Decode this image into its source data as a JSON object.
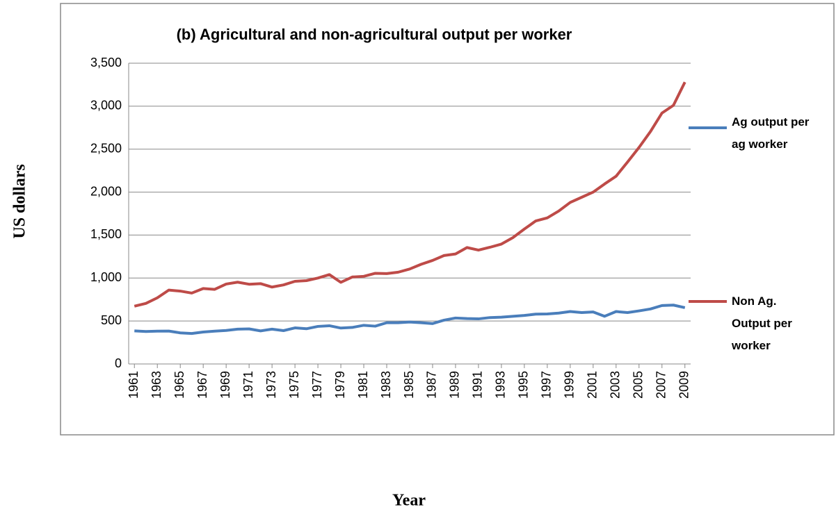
{
  "chart_data": {
    "type": "line",
    "title": "(b) Agricultural and non-agricultural output per worker",
    "x_label": "Year",
    "y_label": "US dollars",
    "x": [
      1961,
      1962,
      1963,
      1964,
      1965,
      1966,
      1967,
      1968,
      1969,
      1970,
      1971,
      1972,
      1973,
      1974,
      1975,
      1976,
      1977,
      1978,
      1979,
      1980,
      1981,
      1982,
      1983,
      1984,
      1985,
      1986,
      1987,
      1988,
      1989,
      1990,
      1991,
      1992,
      1993,
      1994,
      1995,
      1996,
      1997,
      1998,
      1999,
      2000,
      2001,
      2002,
      2003,
      2004,
      2005,
      2006,
      2007,
      2008,
      2009
    ],
    "xlim": [
      1960.5,
      2009.5
    ],
    "xticks": [
      1961,
      1963,
      1965,
      1967,
      1969,
      1971,
      1973,
      1975,
      1977,
      1979,
      1981,
      1983,
      1985,
      1987,
      1989,
      1991,
      1993,
      1995,
      1997,
      1999,
      2001,
      2003,
      2005,
      2007,
      2009
    ],
    "ylim": [
      0,
      3500
    ],
    "yticks": [
      0,
      500,
      {
        "value": 1000,
        "label": "1,000"
      },
      {
        "value": 1500,
        "label": "1,500"
      },
      {
        "value": 2000,
        "label": "2,000"
      },
      {
        "value": 2500,
        "label": "2,500"
      },
      {
        "value": 3000,
        "label": "3,000"
      },
      {
        "value": 3500,
        "label": "3,500"
      }
    ],
    "grid": true,
    "legend": "right",
    "series": [
      {
        "name": "Ag output per ag worker",
        "color": "#4a7ebb",
        "values": [
          385,
          378,
          382,
          383,
          362,
          355,
          372,
          382,
          390,
          405,
          408,
          385,
          405,
          388,
          420,
          410,
          437,
          445,
          418,
          425,
          450,
          440,
          480,
          480,
          488,
          480,
          470,
          510,
          535,
          528,
          525,
          540,
          545,
          555,
          565,
          580,
          582,
          592,
          610,
          598,
          605,
          555,
          610,
          598,
          618,
          640,
          680,
          685,
          655
        ]
      },
      {
        "name": "Non Ag. Output per worker",
        "color": "#be4b48",
        "values": [
          672,
          705,
          770,
          860,
          848,
          825,
          878,
          868,
          930,
          952,
          928,
          935,
          895,
          920,
          962,
          970,
          1000,
          1040,
          950,
          1012,
          1020,
          1055,
          1052,
          1068,
          1105,
          1160,
          1205,
          1262,
          1280,
          1355,
          1325,
          1358,
          1395,
          1470,
          1570,
          1665,
          1700,
          1780,
          1880,
          1940,
          2000,
          2095,
          2185,
          2350,
          2520,
          2705,
          2920,
          3010,
          3280
        ]
      }
    ]
  }
}
